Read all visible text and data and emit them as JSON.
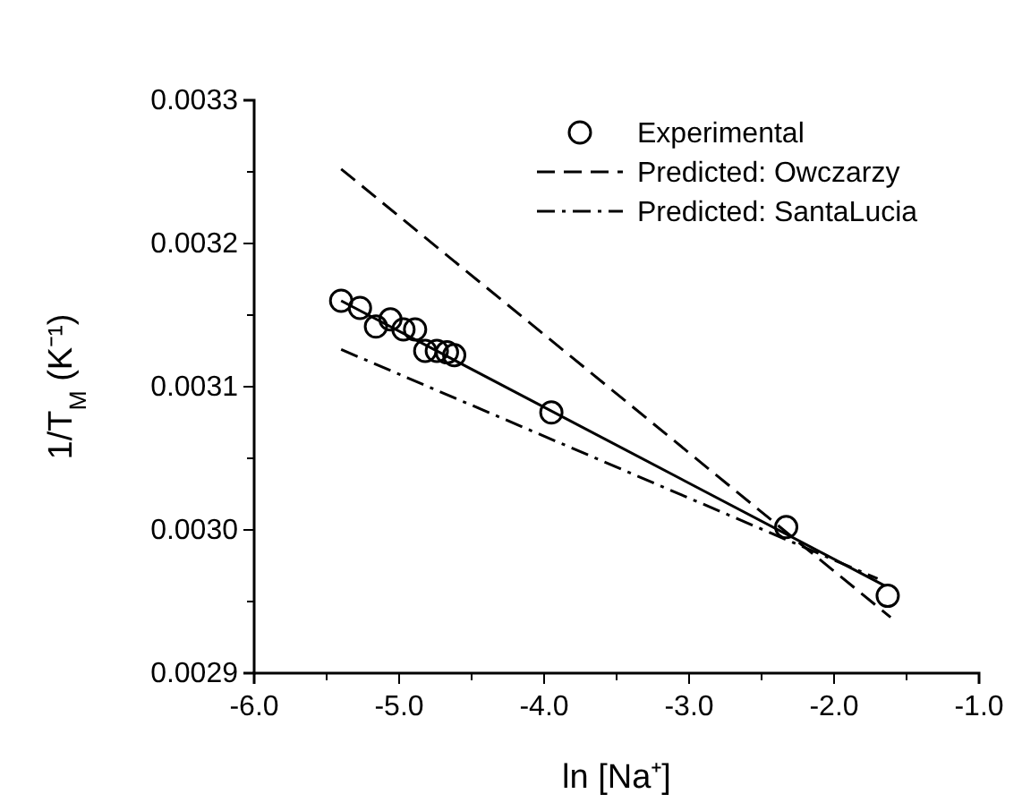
{
  "chart_data": {
    "type": "scatter",
    "xlabel": "ln [Na⁺]",
    "ylabel": "1/T$_{M}$ (K⁻¹)",
    "xlim": [
      -6,
      -1
    ],
    "ylim": [
      0.0029,
      0.0033
    ],
    "xticks": [
      {
        "value": -6,
        "label": "-6.0"
      },
      {
        "value": -5.5,
        "label": null
      },
      {
        "value": -5,
        "label": "-5.0"
      },
      {
        "value": -4.5,
        "label": null
      },
      {
        "value": -4,
        "label": "-4.0"
      },
      {
        "value": -3.5,
        "label": null
      },
      {
        "value": -3,
        "label": "-3.0"
      },
      {
        "value": -2.5,
        "label": null
      },
      {
        "value": -2,
        "label": "-2.0"
      },
      {
        "value": -1.5,
        "label": null
      },
      {
        "value": -1,
        "label": "-1.0"
      }
    ],
    "yticks": [
      0.0029,
      {
        "value": 0.00295,
        "label": null
      },
      {
        "value": 0.003,
        "label": "0.0030"
      },
      {
        "value": 0.00305,
        "label": null
      },
      0.0031,
      {
        "value": 0.00315,
        "label": null
      },
      0.0032,
      {
        "value": 0.00325,
        "label": null
      },
      0.0033
    ],
    "grid": false,
    "legend": "top right",
    "series": [
      {
        "name": "Experimental",
        "marker": "circle",
        "color": "#000000",
        "x": [
          -5.4,
          -5.27,
          -5.16,
          -5.06,
          -4.97,
          -4.89,
          -4.82,
          -4.74,
          -4.67,
          -4.62,
          -3.95,
          -2.33,
          -1.63
        ],
        "values": [
          0.00316,
          0.003155,
          0.003142,
          0.003147,
          0.00314,
          0.00314,
          0.003125,
          0.003125,
          0.003124,
          0.003122,
          0.003082,
          0.003002,
          0.002954
        ]
      },
      {
        "type": "line",
        "line_style": "solid",
        "marker": "none",
        "color": "#000000",
        "x": [
          -5.4,
          -1.65
        ],
        "values": [
          0.00316,
          0.002961
        ]
      },
      {
        "name": "Predicted: Owczarzy",
        "type": "line",
        "line_style": "dashed",
        "marker": "none",
        "color": "#000000",
        "x": [
          -5.4,
          -1.61
        ],
        "values": [
          0.003252,
          0.002939
        ]
      },
      {
        "name": "Predicted: SantaLucia",
        "type": "line",
        "line_style": "dashdot",
        "marker": "none",
        "color": "#000000",
        "x": [
          -5.4,
          -1.7
        ],
        "values": [
          0.003126,
          0.002966
        ]
      }
    ]
  }
}
